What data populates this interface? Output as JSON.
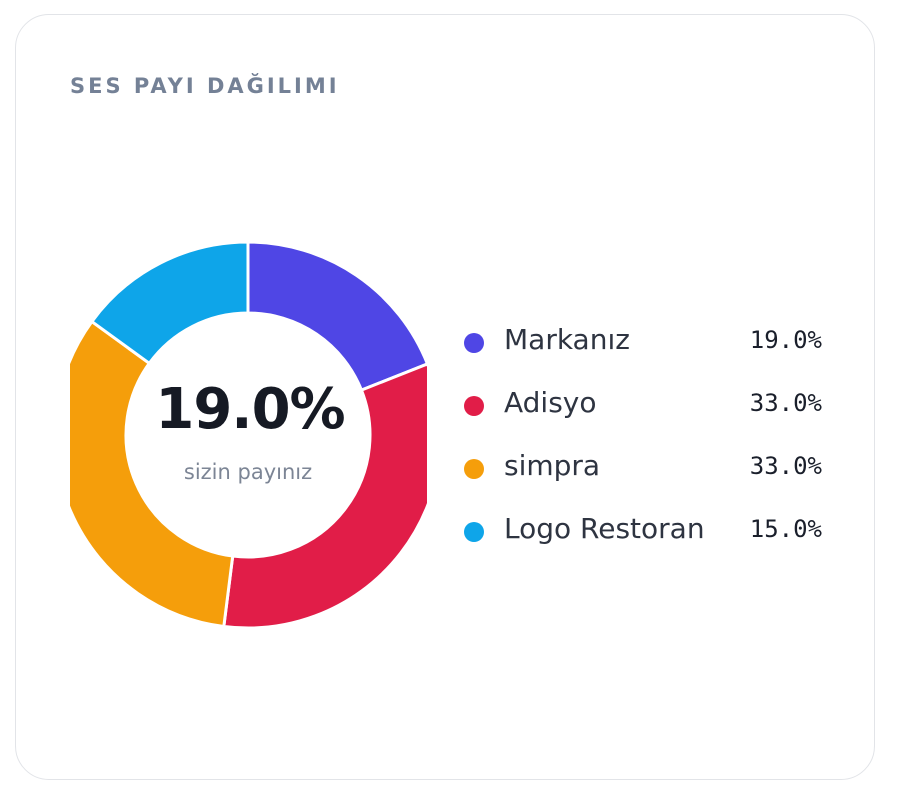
{
  "card": {
    "title": "SES PAYI DAĞILIMI",
    "center_value": "19.0%",
    "center_caption": "sizin payınız"
  },
  "chart_data": {
    "type": "pie",
    "variant": "donut",
    "title": "SES PAYI DAĞILIMI",
    "categories": [
      "Markanız",
      "Adisyo",
      "simpra",
      "Logo Restoran"
    ],
    "values": [
      19.0,
      33.0,
      33.0,
      15.0
    ],
    "value_labels": [
      "19.0%",
      "33.0%",
      "33.0%",
      "15.0%"
    ],
    "colors": [
      "#4f46e5",
      "#e11d48",
      "#f59e0b",
      "#0ea5e9"
    ],
    "legend": "right"
  }
}
